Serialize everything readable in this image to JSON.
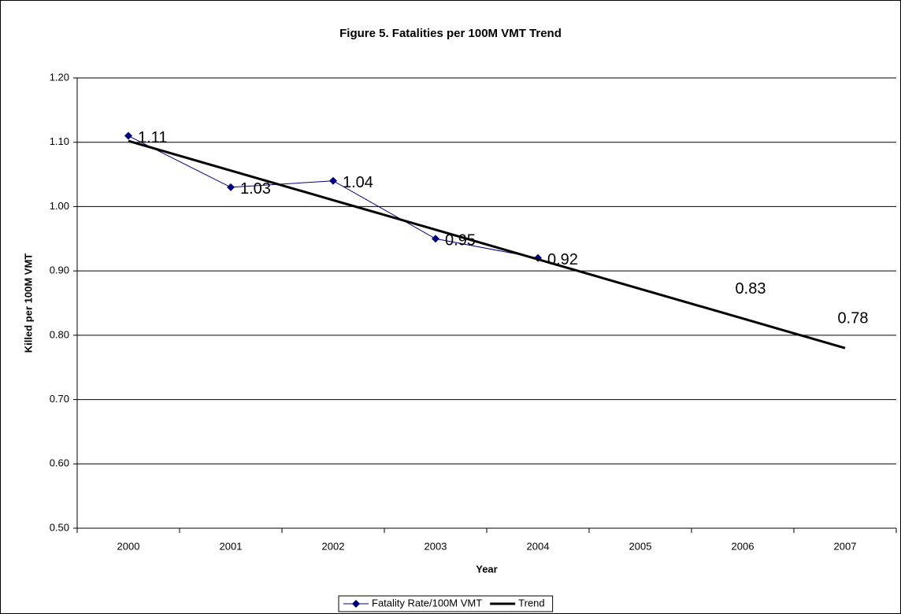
{
  "chart_data": {
    "type": "line",
    "title": "Figure 5. Fatalities per 100M VMT Trend",
    "x_label": "Year",
    "y_label": "Killed per 100M VMT",
    "categories": [
      "2000",
      "2001",
      "2002",
      "2003",
      "2004",
      "2005",
      "2006",
      "2007"
    ],
    "series": [
      {
        "name": "Fatality Rate/100M VMT",
        "color": "#000080",
        "marker": "diamond",
        "values": [
          1.11,
          1.03,
          1.04,
          0.95,
          0.92,
          null,
          null,
          null
        ]
      },
      {
        "name": "Trend",
        "color": "#000000",
        "values": [
          1.102,
          1.056,
          1.01,
          0.964,
          0.918,
          0.872,
          0.826,
          0.78
        ],
        "value_labels": [
          null,
          null,
          null,
          null,
          null,
          null,
          "0.83",
          "0.78"
        ]
      }
    ],
    "ylim": [
      0.5,
      1.2
    ],
    "yticks": [
      {
        "value": 0.5,
        "label": "0.50"
      },
      {
        "value": 0.6,
        "label": "0.60"
      },
      {
        "value": 0.7,
        "label": "0.70"
      },
      {
        "value": 0.8,
        "label": "0.80"
      },
      {
        "value": 0.9,
        "label": "0.90"
      },
      {
        "value": 1.0,
        "label": "1.00"
      },
      {
        "value": 1.1,
        "label": "1.10"
      },
      {
        "value": 1.2,
        "label": "1.20"
      }
    ],
    "grid": true,
    "legend": "bottom"
  }
}
